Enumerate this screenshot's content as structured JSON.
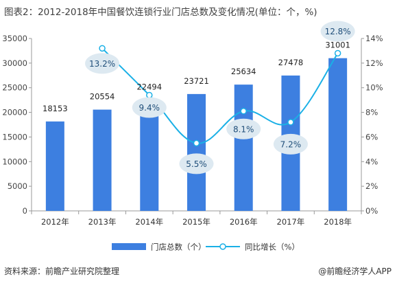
{
  "title": "图表2：2012-2018年中国餐饮连锁行业门店总数及变化情况(单位：个，%)",
  "source": "资料来源：前瞻产业研究院整理",
  "credit": "@前瞻经济学人APP",
  "colors": {
    "bar": "#3d7fe0",
    "line": "#1ab0e6",
    "bubble": "#dde9f1",
    "axis": "#999999",
    "marker_fill": "#ffffff"
  },
  "chart_data": {
    "type": "bar",
    "categories": [
      "2012年",
      "2013年",
      "2014年",
      "2015年",
      "2016年",
      "2017年",
      "2018年"
    ],
    "series": [
      {
        "name": "门店总数（个）",
        "type": "bar",
        "axis": "left",
        "values": [
          18153,
          20554,
          22494,
          23721,
          25634,
          27478,
          31001
        ],
        "labels": [
          "18153",
          "20554",
          "22494",
          "23721",
          "25634",
          "27478",
          "31001"
        ]
      },
      {
        "name": "同比增长（%）",
        "type": "line",
        "axis": "right",
        "values": [
          null,
          13.2,
          9.4,
          5.5,
          8.1,
          7.2,
          12.8
        ],
        "labels": [
          "",
          "13.2%",
          "9.4%",
          "5.5%",
          "8.1%",
          "7.2%",
          "12.8%"
        ]
      }
    ],
    "ylim_left": [
      0,
      35000
    ],
    "yticks_left": [
      "0",
      "5000",
      "10000",
      "15000",
      "20000",
      "25000",
      "30000",
      "35000"
    ],
    "ylim_right": [
      0,
      14
    ],
    "yticks_right": [
      "0%",
      "2%",
      "4%",
      "6%",
      "8%",
      "10%",
      "12%",
      "14%"
    ],
    "grid": false,
    "legend_position": "bottom-center",
    "legend": [
      "门店总数（个）",
      "同比增长（%）"
    ]
  }
}
